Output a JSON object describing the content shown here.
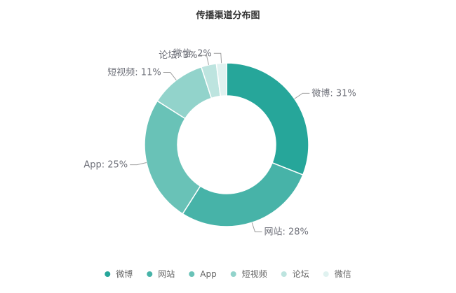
{
  "chart_data": {
    "type": "pie",
    "subtype": "donut",
    "title": "传播渠道分布图",
    "legend_position": "bottom",
    "slices": [
      {
        "name": "微博",
        "value": 31,
        "label": "微博: 31%",
        "color": "#26a69a"
      },
      {
        "name": "网站",
        "value": 28,
        "label": "网站: 28%",
        "color": "#47b3a8"
      },
      {
        "name": "App",
        "value": 25,
        "label": "App: 25%",
        "color": "#69c2b7"
      },
      {
        "name": "短视频",
        "value": 11,
        "label": "短视频: 11%",
        "color": "#92d3cb"
      },
      {
        "name": "论坛",
        "value": 3,
        "label": "论坛: 3%",
        "color": "#bde4df"
      },
      {
        "name": "微信",
        "value": 2,
        "label": "微信: 2%",
        "color": "#e0f2f0"
      }
    ]
  }
}
